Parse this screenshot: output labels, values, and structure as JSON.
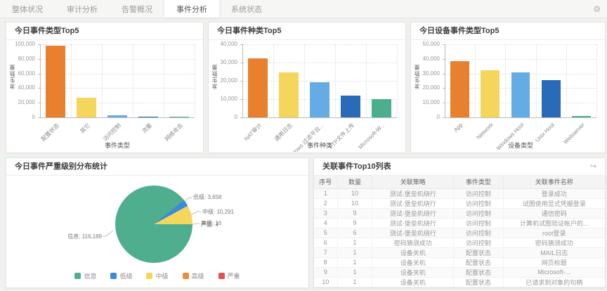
{
  "nav": {
    "tabs": [
      "整体状况",
      "审计分析",
      "告警概况",
      "事件分析",
      "系统状态"
    ],
    "active_index": 3
  },
  "icons": {
    "gear": "⚙",
    "share_arrow": "↪"
  },
  "palette": [
    "#E8802E",
    "#F5D65C",
    "#66ACE4",
    "#2A6BB8",
    "#4BAE8C"
  ],
  "chart_data": [
    {
      "type": "bar",
      "title": "今日事件类型Top5",
      "categories": [
        "配置状态",
        "其它",
        "访问控制",
        "流量",
        "网络攻击"
      ],
      "values": [
        98000,
        26500,
        2500,
        1200,
        150
      ],
      "xlabel": "事件类型",
      "ylabel": "发生数量",
      "ylim": [
        0,
        100000
      ],
      "yticks": [
        0,
        20000,
        40000,
        60000,
        80000,
        100000
      ],
      "grid": true,
      "legend_position": "none"
    },
    {
      "type": "bar",
      "title": "今日事件种类Top5",
      "categories": [
        "NAT审计",
        "通用日志",
        "Windows 过滤平台...",
        "FTP文件上传",
        "Microsoft-W..."
      ],
      "values": [
        32500,
        24500,
        19200,
        11800,
        10100
      ],
      "xlabel": "事件种类",
      "ylabel": "发生数量",
      "ylim": [
        0,
        40000
      ],
      "yticks": [
        0,
        10000,
        20000,
        30000,
        40000
      ],
      "grid": true,
      "legend_position": "none"
    },
    {
      "type": "bar",
      "title": "今日设备事件类型Top5",
      "categories": [
        "App",
        "Network",
        "Windows Host",
        "Unix Host",
        "Webserver"
      ],
      "values": [
        38500,
        32300,
        31000,
        25500,
        1000
      ],
      "xlabel": "设备类型",
      "ylabel": "发生数量",
      "ylim": [
        0,
        50000
      ],
      "yticks": [
        0,
        10000,
        20000,
        30000,
        40000,
        50000
      ],
      "grid": true,
      "legend_position": "none"
    },
    {
      "type": "pie",
      "title": "今日事件严重级别分布统计",
      "slices": [
        {
          "name": "信息",
          "value": 116189,
          "color": "#4FAE8D"
        },
        {
          "name": "低级",
          "value": 3658,
          "color": "#3C8BD9"
        },
        {
          "name": "中级",
          "value": 10291,
          "color": "#F5D65C"
        },
        {
          "name": "高级",
          "value": 16,
          "color": "#EF8C3B"
        },
        {
          "name": "严重",
          "value": 4,
          "color": "#E25050"
        }
      ],
      "legend": [
        "信息",
        "低级",
        "中级",
        "高级",
        "严重"
      ],
      "legend_position": "bottom"
    }
  ],
  "table": {
    "title": "关联事件Top10列表",
    "columns": [
      "序号",
      "数量",
      "关联策略",
      "事件类型",
      "关联事件名称"
    ],
    "rows": [
      [
        "1",
        "10",
        "测试-堡垒机绕行",
        "访问控制",
        "登录成功"
      ],
      [
        "2",
        "10",
        "测试-堡垒机绕行",
        "访问控制",
        "试图使用显式凭据登录"
      ],
      [
        "3",
        "9",
        "测试-堡垒机绕行",
        "访问控制",
        "通信密码"
      ],
      [
        "4",
        "9",
        "测试-堡垒机绕行",
        "访问控制",
        "计算机试图验证帐户的..."
      ],
      [
        "5",
        "6",
        "测试-堡垒机绕行",
        "访问控制",
        "root登录"
      ],
      [
        "6",
        "1",
        "密码猜测成功",
        "访问控制",
        "密码猜测成功"
      ],
      [
        "7",
        "1",
        "设备关机",
        "配置状态",
        "MAIL日志"
      ],
      [
        "8",
        "1",
        "设备关机",
        "配置状态",
        "网页标题"
      ],
      [
        "9",
        "1",
        "设备关机",
        "配置状态",
        "Microsoft-..."
      ],
      [
        "10",
        "1",
        "设备关机",
        "配置状态",
        "已请求到对象的句柄"
      ]
    ]
  }
}
